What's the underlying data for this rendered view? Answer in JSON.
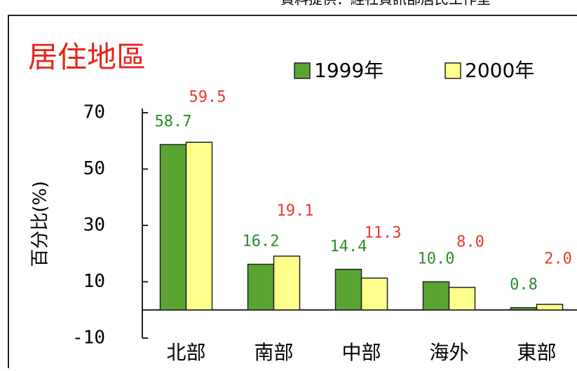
{
  "chart_data": {
    "type": "bar",
    "source": "資料提供：經社資訊部居民工作室",
    "title": "居住地區",
    "y_label": "百分比(%)",
    "categories": [
      "北部",
      "南部",
      "中部",
      "海外",
      "東部"
    ],
    "series": [
      {
        "name": "1999年",
        "color": "#5aa532",
        "label_color": "#2e8b2e",
        "values": [
          58.7,
          16.2,
          14.4,
          10.0,
          0.8
        ],
        "value_labels": [
          "58.7",
          "16.2",
          "14.4",
          "10.0",
          "0.8"
        ]
      },
      {
        "name": "2000年",
        "color": "#ffff8c",
        "label_color": "#e83a2a",
        "values": [
          59.5,
          19.1,
          11.3,
          8.0,
          2.0
        ],
        "value_labels": [
          "59.5",
          "19.1",
          "11.3",
          "8.0",
          "2.0"
        ]
      }
    ],
    "ylim": [
      -10,
      70
    ],
    "yticks": [
      -10,
      10,
      30,
      50,
      70
    ],
    "legend": "top-right"
  }
}
